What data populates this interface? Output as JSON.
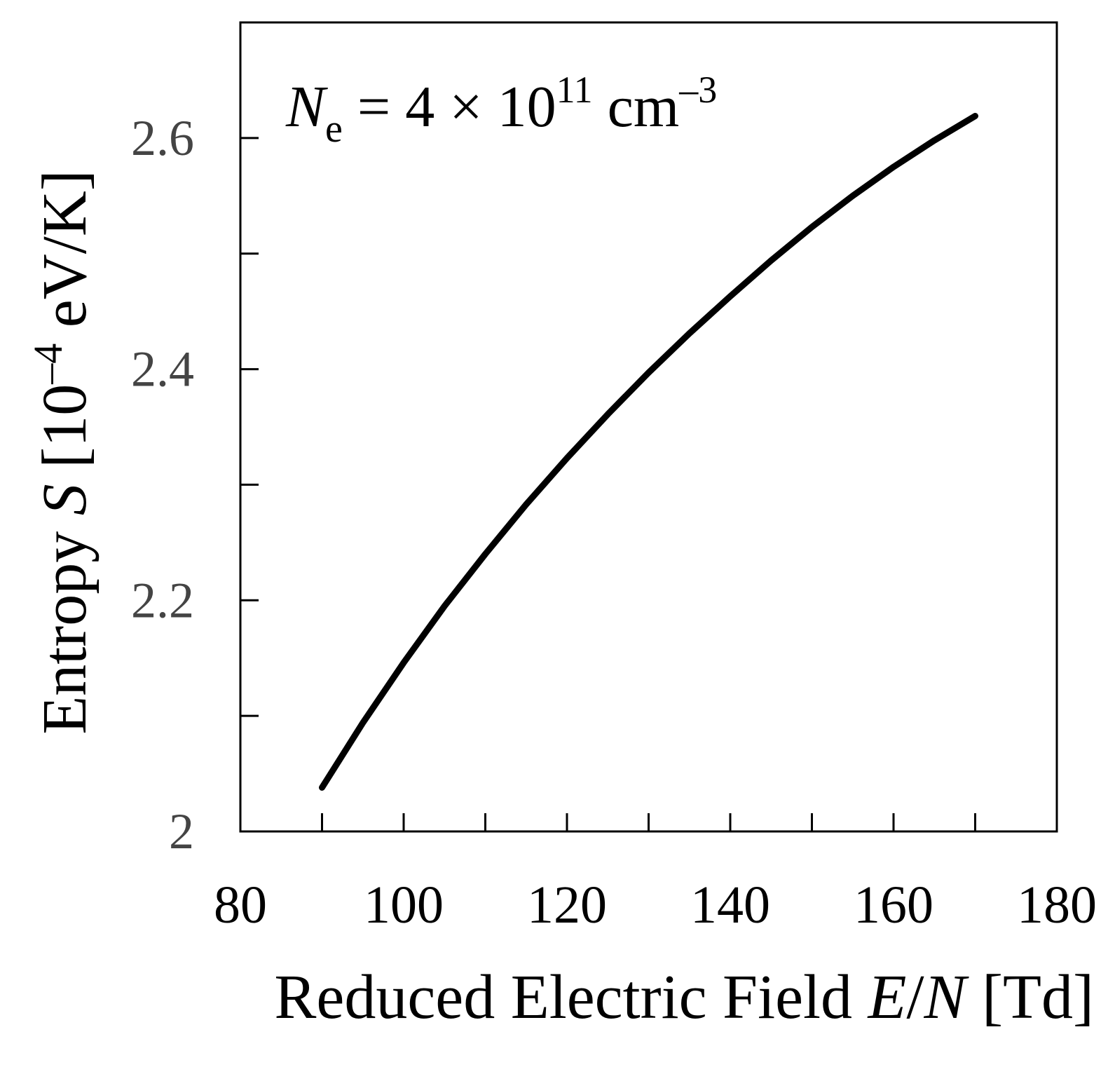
{
  "chart_data": {
    "type": "line",
    "annotation": {
      "symbol": "N",
      "subscript": "e",
      "eq": " = 4  × 10",
      "exp": "11",
      "unit": " cm",
      "unit_exp": "–3"
    },
    "xlabel": {
      "text": "Reduced Electric Field ",
      "var1": "E",
      "slash": "/",
      "var2": "N",
      "unit": " [Td]"
    },
    "ylabel": {
      "text": "Entropy ",
      "var": "S",
      "unit_pre": " [10",
      "unit_exp": "–4",
      "unit_post": " eV/K]"
    },
    "xlim": [
      80,
      180
    ],
    "ylim": [
      2.0,
      2.7
    ],
    "x_ticks": [
      80,
      100,
      120,
      140,
      160,
      180
    ],
    "x_tick_labels": [
      "80",
      "100",
      "120",
      "140",
      "160",
      "180"
    ],
    "x_minor_ticks": [
      90,
      110,
      130,
      150,
      170
    ],
    "y_ticks": [
      2.0,
      2.2,
      2.4,
      2.6
    ],
    "y_tick_labels": [
      "2",
      "2.2",
      "2.4",
      "2.6"
    ],
    "y_minor_ticks": [
      2.1,
      2.3,
      2.5
    ],
    "grid": false,
    "colors": {
      "line": "#000000",
      "axis": "#000000",
      "y_tick_text": "#444444",
      "x_tick_text": "#000000"
    },
    "series": [
      {
        "x": [
          90,
          95,
          100,
          105,
          110,
          115,
          120,
          125,
          130,
          135,
          140,
          145,
          150,
          155,
          160,
          165,
          170
        ],
        "y": [
          2.038,
          2.094,
          2.146,
          2.195,
          2.24,
          2.283,
          2.323,
          2.361,
          2.397,
          2.431,
          2.463,
          2.494,
          2.523,
          2.55,
          2.575,
          2.598,
          2.619
        ]
      }
    ]
  }
}
